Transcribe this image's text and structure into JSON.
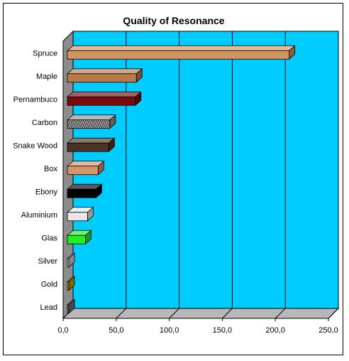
{
  "chart_data": {
    "type": "bar",
    "orientation": "horizontal",
    "title": "Quality of Resonance",
    "xlabel": "",
    "ylabel": "",
    "xlim": [
      0,
      250
    ],
    "x_ticks": [
      "0,0",
      "50,0",
      "100,0",
      "150,0",
      "200,0",
      "250,0"
    ],
    "grid": true,
    "legend": "none",
    "categories": [
      "Spruce",
      "Maple",
      "Pernambuco",
      "Carbon",
      "Snake Wood",
      "Box",
      "Ebony",
      "Aluminium",
      "Glas",
      "Silver",
      "Gold",
      "Lead"
    ],
    "values": [
      213,
      69,
      68,
      44,
      43,
      33,
      31,
      23,
      21,
      4,
      2,
      3
    ],
    "colors": [
      "#d49460",
      "#b87a48",
      "#7a0a0a",
      "#909090",
      "#4a3326",
      "#d4956a",
      "#000000",
      "#e8e8e8",
      "#22ee22",
      "#d0d0d8",
      "#b8a800",
      "#707070"
    ],
    "plot_background": "#00ccff",
    "wall_color": "#8c8c8c",
    "floor_color": "#b8b8b8"
  }
}
